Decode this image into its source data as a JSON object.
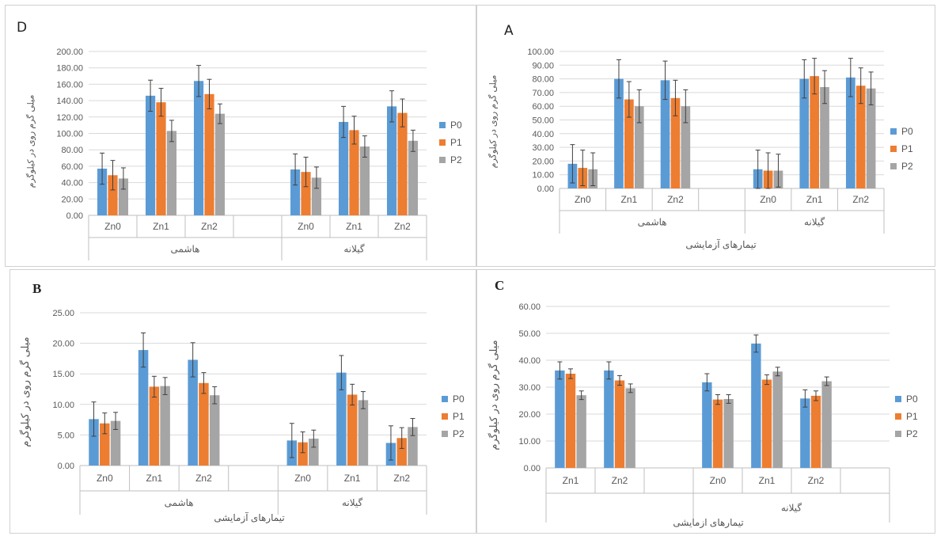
{
  "colors": {
    "P0": "#5b9bd5",
    "P1": "#ed7d31",
    "P2": "#a5a5a5",
    "grid": "#d9d9d9",
    "axis": "#bfbfbf",
    "text": "#595959"
  },
  "panels": {
    "D": {
      "letter": "D",
      "ylabel": "میلی گرم روی در کیلوگرم",
      "xtitle": ""
    },
    "A": {
      "letter": "A",
      "ylabel": "میلی گرم روی در کیلوگرم",
      "xtitle": "تیمارهای آزمایشی"
    },
    "B": {
      "letter": "B",
      "ylabel": "میلی گرم روی در کیلوگرم",
      "xtitle": "تیمارهای آزمایشی"
    },
    "C": {
      "letter": "C",
      "ylabel": "میلی گرم روی در کیلوگرم",
      "xtitle": "تیمارهای ازمایشی"
    }
  },
  "chart_data": [
    {
      "id": "D",
      "type": "bar",
      "ylim": [
        0,
        200
      ],
      "ystep": 20,
      "tick_decimals": 2,
      "slots": [
        "Zn0",
        "Zn1",
        "Zn2",
        "",
        "Zn0",
        "Zn1",
        "Zn2"
      ],
      "groups": [
        {
          "label": "هاشمی",
          "start": 0,
          "end": 3
        },
        {
          "label": "گیلانه",
          "start": 4,
          "end": 6
        }
      ],
      "series": [
        {
          "name": "P0",
          "values": [
            57,
            146,
            164,
            null,
            56,
            114,
            133
          ],
          "errors": [
            19,
            19,
            19,
            null,
            19,
            19,
            19
          ]
        },
        {
          "name": "P1",
          "values": [
            49,
            138,
            148,
            null,
            53,
            104,
            125
          ],
          "errors": [
            18,
            17,
            18,
            null,
            18,
            17,
            17
          ]
        },
        {
          "name": "P2",
          "values": [
            45,
            103,
            124,
            null,
            46,
            84,
            91
          ],
          "errors": [
            13,
            13,
            12,
            null,
            13,
            13,
            13
          ]
        }
      ]
    },
    {
      "id": "A",
      "type": "bar",
      "ylim": [
        0,
        100
      ],
      "ystep": 10,
      "tick_decimals": 2,
      "slots": [
        "Zn0",
        "Zn1",
        "Zn2",
        "",
        "Zn0",
        "Zn1",
        "Zn2"
      ],
      "groups": [
        {
          "label": "هاشمی",
          "start": 0,
          "end": 3
        },
        {
          "label": "گیلانه",
          "start": 4,
          "end": 6
        }
      ],
      "series": [
        {
          "name": "P0",
          "values": [
            18,
            80,
            79,
            null,
            14,
            80,
            81
          ],
          "errors": [
            14,
            14,
            14,
            null,
            14,
            14,
            14
          ]
        },
        {
          "name": "P1",
          "values": [
            15,
            65,
            66,
            null,
            13,
            82,
            75
          ],
          "errors": [
            13,
            13,
            13,
            null,
            13,
            13,
            13
          ]
        },
        {
          "name": "P2",
          "values": [
            14,
            60,
            60,
            null,
            13,
            74,
            73
          ],
          "errors": [
            12,
            12,
            12,
            null,
            12,
            12,
            12
          ]
        }
      ]
    },
    {
      "id": "B",
      "type": "bar",
      "ylim": [
        0,
        25
      ],
      "ystep": 5,
      "tick_decimals": 2,
      "slots": [
        "Zn0",
        "Zn1",
        "Zn2",
        "",
        "Zn0",
        "Zn1",
        "Zn2"
      ],
      "groups": [
        {
          "label": "هاشمی",
          "start": 0,
          "end": 3
        },
        {
          "label": "گیلانه",
          "start": 4,
          "end": 6
        }
      ],
      "series": [
        {
          "name": "P0",
          "values": [
            7.6,
            18.9,
            17.3,
            null,
            4.1,
            15.2,
            3.7
          ],
          "errors": [
            2.8,
            2.8,
            2.8,
            null,
            2.8,
            2.8,
            2.8
          ]
        },
        {
          "name": "P1",
          "values": [
            6.9,
            12.9,
            13.5,
            null,
            3.8,
            11.6,
            4.5
          ],
          "errors": [
            1.7,
            1.7,
            1.7,
            null,
            1.7,
            1.7,
            1.7
          ]
        },
        {
          "name": "P2",
          "values": [
            7.3,
            13.0,
            11.5,
            null,
            4.4,
            10.7,
            6.3
          ],
          "errors": [
            1.4,
            1.4,
            1.4,
            null,
            1.4,
            1.4,
            1.4
          ]
        }
      ]
    },
    {
      "id": "C",
      "type": "bar",
      "ylim": [
        0,
        60
      ],
      "ystep": 10,
      "tick_decimals": 2,
      "slots": [
        "Zn1",
        "Zn2",
        "",
        "Zn0",
        "Zn1",
        "Zn2",
        ""
      ],
      "groups": [
        {
          "label": "",
          "start": 0,
          "end": 2
        },
        {
          "label": "گیلانه",
          "start": 3,
          "end": 6
        }
      ],
      "series": [
        {
          "name": "P0",
          "values": [
            36.2,
            36.2,
            null,
            31.8,
            46.2,
            25.8,
            null
          ],
          "errors": [
            3.2,
            3.2,
            null,
            3.2,
            3.2,
            3.2,
            null
          ]
        },
        {
          "name": "P1",
          "values": [
            35.0,
            32.5,
            null,
            25.4,
            32.8,
            26.8,
            null
          ],
          "errors": [
            1.8,
            1.8,
            null,
            1.8,
            1.8,
            1.8,
            null
          ]
        },
        {
          "name": "P2",
          "values": [
            27.0,
            29.6,
            null,
            25.6,
            35.8,
            32.2,
            null
          ],
          "errors": [
            1.6,
            1.6,
            null,
            1.6,
            1.6,
            1.6,
            null
          ]
        }
      ]
    }
  ]
}
